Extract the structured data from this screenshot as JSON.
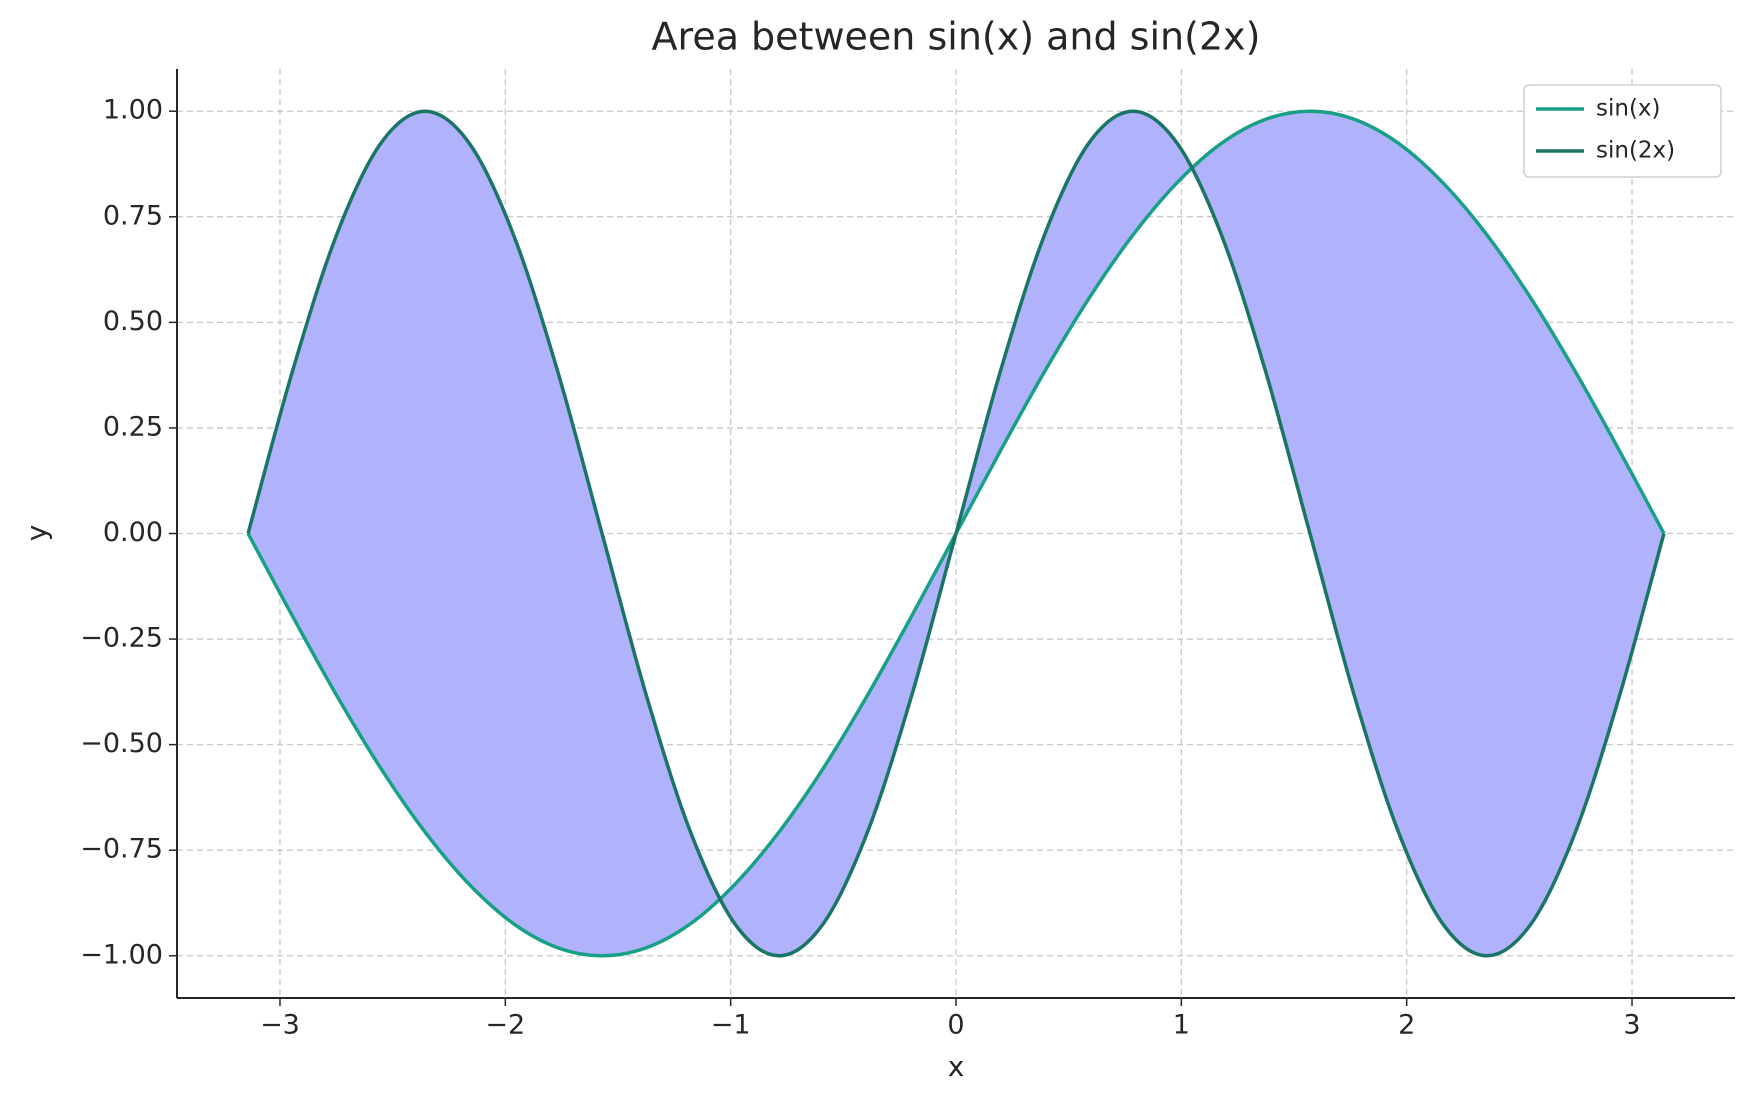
{
  "chart_data": {
    "type": "line",
    "title": "Area between sin(x) and sin(2x)",
    "x_label": "x",
    "y_label": "y",
    "x": [
      -3.1416,
      -2.9452,
      -2.7489,
      -2.5525,
      -2.3562,
      -2.1598,
      -1.9635,
      -1.7671,
      -1.5708,
      -1.3744,
      -1.1781,
      -0.9817,
      -0.7854,
      -0.589,
      -0.3927,
      -0.1963,
      0,
      0.1963,
      0.3927,
      0.589,
      0.7854,
      0.9817,
      1.1781,
      1.3744,
      1.5708,
      1.7671,
      1.9635,
      2.1598,
      2.3562,
      2.5525,
      2.7489,
      2.9452,
      3.1416
    ],
    "series": [
      {
        "name": "sin(x)",
        "color": "#17a086",
        "values": [
          0,
          -0.195,
          -0.383,
          -0.556,
          -0.707,
          -0.831,
          -0.924,
          -0.981,
          -1,
          -0.981,
          -0.924,
          -0.831,
          -0.707,
          -0.556,
          -0.383,
          -0.195,
          0,
          0.195,
          0.383,
          0.556,
          0.707,
          0.831,
          0.924,
          0.981,
          1,
          0.981,
          0.924,
          0.831,
          0.707,
          0.556,
          0.383,
          0.195,
          0
        ]
      },
      {
        "name": "sin(2x)",
        "color": "#1a7566",
        "values": [
          0,
          0.383,
          0.707,
          0.924,
          1,
          0.924,
          0.707,
          0.383,
          0,
          -0.383,
          -0.707,
          -0.924,
          -1,
          -0.924,
          -0.707,
          -0.383,
          0,
          0.383,
          0.707,
          0.924,
          1,
          0.924,
          0.707,
          0.383,
          0,
          -0.383,
          -0.707,
          -0.924,
          -1,
          -0.924,
          -0.707,
          -0.383,
          0
        ]
      }
    ],
    "fill_between_color": "#b0b3fc",
    "xlim": [
      -3.457,
      3.457
    ],
    "ylim": [
      -1.1,
      1.1
    ],
    "xticks": [
      {
        "value": -3,
        "label": "−3"
      },
      {
        "value": -2,
        "label": "−2"
      },
      {
        "value": -1,
        "label": "−1"
      },
      0,
      1,
      2,
      3
    ],
    "yticks": [
      {
        "value": -1,
        "label": "−1.00"
      },
      {
        "value": -0.75,
        "label": "−0.75"
      },
      {
        "value": -0.5,
        "label": "−0.50"
      },
      {
        "value": -0.25,
        "label": "−0.25"
      },
      {
        "value": 0,
        "label": "0.00"
      },
      {
        "value": 0.25,
        "label": "0.25"
      },
      {
        "value": 0.5,
        "label": "0.50"
      },
      {
        "value": 0.75,
        "label": "0.75"
      },
      {
        "value": 1,
        "label": "1.00"
      }
    ],
    "grid": true,
    "legend": "upper right"
  }
}
